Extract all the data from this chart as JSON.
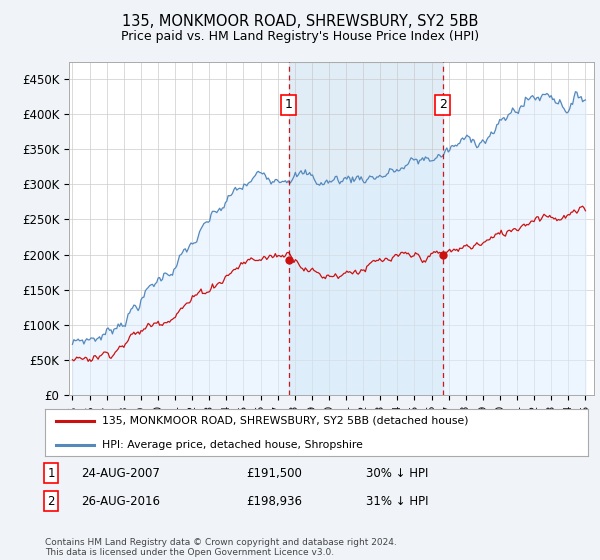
{
  "title": "135, MONKMOOR ROAD, SHREWSBURY, SY2 5BB",
  "subtitle": "Price paid vs. HM Land Registry's House Price Index (HPI)",
  "background_color": "#f0f4f8",
  "plot_bg_color": "#ffffff",
  "ylabel_ticks": [
    "£0",
    "£50K",
    "£100K",
    "£150K",
    "£200K",
    "£250K",
    "£300K",
    "£350K",
    "£400K",
    "£450K"
  ],
  "ytick_values": [
    0,
    50000,
    100000,
    150000,
    200000,
    250000,
    300000,
    350000,
    400000,
    450000
  ],
  "ylim": [
    0,
    475000
  ],
  "xlim_start": 1994.8,
  "xlim_end": 2025.5,
  "grid_color": "#cccccc",
  "hpi_color": "#5588bb",
  "hpi_fill_color": "#ddeeff",
  "hpi_fill_alpha": 0.5,
  "hpi_shade_color": "#cce0f0",
  "hpi_shade_alpha": 0.6,
  "price_color": "#cc1111",
  "marker1_x": 2007.65,
  "marker1_y": 191500,
  "marker1_label": "1",
  "marker1_date": "24-AUG-2007",
  "marker1_price": "£191,500",
  "marker1_pct": "30% ↓ HPI",
  "marker2_x": 2016.65,
  "marker2_y": 198936,
  "marker2_label": "2",
  "marker2_date": "26-AUG-2016",
  "marker2_price": "£198,936",
  "marker2_pct": "31% ↓ HPI",
  "legend_line1": "135, MONKMOOR ROAD, SHREWSBURY, SY2 5BB (detached house)",
  "legend_line2": "HPI: Average price, detached house, Shropshire",
  "footnote": "Contains HM Land Registry data © Crown copyright and database right 2024.\nThis data is licensed under the Open Government Licence v3.0."
}
